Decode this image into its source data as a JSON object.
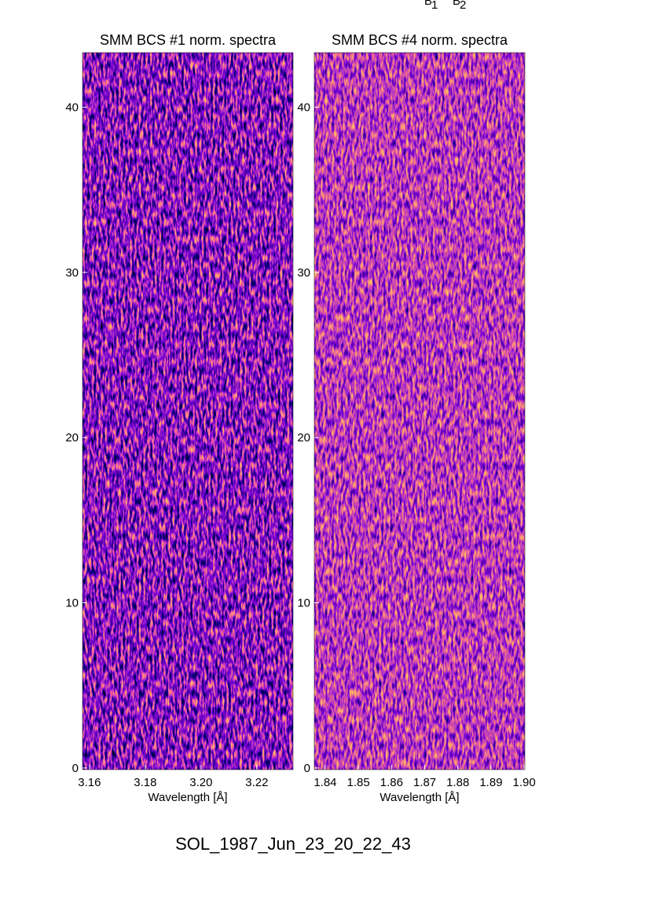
{
  "chart_data": [
    {
      "type": "heatmap",
      "title": "SMM BCS #1 norm. spectra",
      "x_label": "Wavelength [Å]",
      "xlim": [
        3.1575,
        3.233
      ],
      "xticks": [
        3.16,
        3.18,
        {
          "value": 3.2,
          "label": "3.20"
        },
        3.22
      ],
      "ylim": [
        -0.1,
        43.3
      ],
      "yticks": [
        0,
        10,
        20,
        30,
        40
      ]
    },
    {
      "type": "heatmap",
      "title": "SMM BCS #4 norm. spectra",
      "x_label": "Wavelength [Å]",
      "xlim": [
        1.8367,
        1.9002
      ],
      "xticks": [
        1.84,
        1.85,
        1.86,
        1.87,
        1.88,
        1.89,
        {
          "value": 1.9,
          "label": "1.90"
        }
      ],
      "ylim": [
        -0.1,
        43.3
      ],
      "yticks": [
        0,
        10,
        20,
        30,
        40
      ]
    }
  ],
  "annotations": [
    {
      "text": "B",
      "sub": "1"
    },
    {
      "text": "B",
      "sub": "2"
    }
  ],
  "caption": "SOL_1987_Jun_23_20_22_43"
}
